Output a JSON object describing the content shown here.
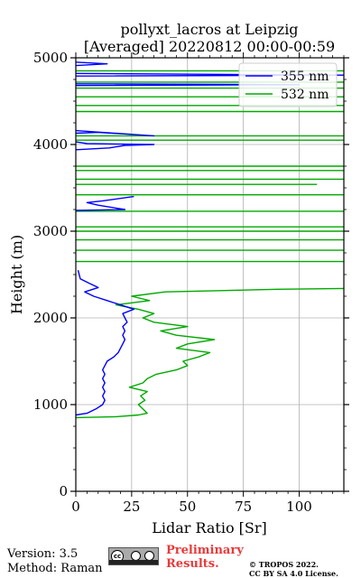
{
  "chart_data": {
    "type": "line",
    "title": "pollyxt_lacros at Leipzig",
    "subtitle": "[Averaged] 20220812 00:00-00:59",
    "xlabel": "Lidar Ratio [Sr]",
    "ylabel": "Height (m)",
    "xlim": [
      0,
      120
    ],
    "ylim": [
      0,
      5000
    ],
    "xticks": [
      0,
      25,
      50,
      75,
      100
    ],
    "yticks": [
      0,
      1000,
      2000,
      3000,
      4000,
      5000
    ],
    "grid": true,
    "legend_position": "top-right",
    "series": [
      {
        "name": "355 nm",
        "color": "#0000ff",
        "points": [
          [
            0,
            880
          ],
          [
            5,
            900
          ],
          [
            9,
            950
          ],
          [
            12,
            1000
          ],
          [
            13,
            1050
          ],
          [
            12,
            1100
          ],
          [
            13,
            1150
          ],
          [
            12,
            1200
          ],
          [
            13,
            1250
          ],
          [
            12,
            1300
          ],
          [
            13,
            1350
          ],
          [
            12,
            1400
          ],
          [
            13,
            1450
          ],
          [
            14,
            1500
          ],
          [
            17,
            1550
          ],
          [
            19,
            1600
          ],
          [
            20,
            1650
          ],
          [
            21,
            1700
          ],
          [
            22,
            1750
          ],
          [
            21,
            1800
          ],
          [
            22,
            1850
          ],
          [
            21,
            1900
          ],
          [
            23,
            1950
          ],
          [
            22,
            2000
          ],
          [
            21,
            2050
          ],
          [
            26,
            2100
          ],
          [
            20,
            2150
          ],
          [
            14,
            2200
          ],
          [
            8,
            2250
          ],
          [
            4,
            2300
          ],
          [
            10,
            2350
          ],
          [
            6,
            2400
          ],
          [
            2,
            2450
          ],
          [
            1,
            2550
          ],
          [
            null,
            null
          ],
          [
            0,
            3240
          ],
          [
            22,
            3250
          ],
          [
            10,
            3300
          ],
          [
            5,
            3330
          ],
          [
            12,
            3350
          ],
          [
            26,
            3400
          ],
          [
            null,
            null
          ],
          [
            0,
            3940
          ],
          [
            15,
            3960
          ],
          [
            22,
            3990
          ],
          [
            35,
            4000
          ],
          [
            5,
            4010
          ],
          [
            0,
            4030
          ],
          [
            null,
            null
          ],
          [
            0,
            4130
          ],
          [
            10,
            4140
          ],
          [
            35,
            4100
          ],
          [
            0,
            4160
          ],
          [
            null,
            null
          ],
          [
            0,
            4680
          ],
          [
            100,
            4690
          ],
          [
            0,
            4700
          ],
          [
            null,
            null
          ],
          [
            0,
            4790
          ],
          [
            120,
            4800
          ],
          [
            0,
            4820
          ],
          [
            null,
            null
          ],
          [
            0,
            4910
          ],
          [
            14,
            4930
          ],
          [
            0,
            4950
          ]
        ]
      },
      {
        "name": "532 nm",
        "color": "#00aa00",
        "points": [
          [
            0,
            850
          ],
          [
            18,
            860
          ],
          [
            28,
            880
          ],
          [
            32,
            900
          ],
          [
            30,
            950
          ],
          [
            28,
            1000
          ],
          [
            31,
            1050
          ],
          [
            29,
            1100
          ],
          [
            32,
            1150
          ],
          [
            24,
            1200
          ],
          [
            30,
            1250
          ],
          [
            32,
            1300
          ],
          [
            36,
            1350
          ],
          [
            45,
            1400
          ],
          [
            50,
            1450
          ],
          [
            48,
            1500
          ],
          [
            55,
            1550
          ],
          [
            60,
            1600
          ],
          [
            45,
            1650
          ],
          [
            50,
            1700
          ],
          [
            62,
            1750
          ],
          [
            45,
            1800
          ],
          [
            38,
            1850
          ],
          [
            50,
            1900
          ],
          [
            35,
            1950
          ],
          [
            30,
            2000
          ],
          [
            35,
            2050
          ],
          [
            28,
            2100
          ],
          [
            18,
            2150
          ],
          [
            33,
            2200
          ],
          [
            25,
            2250
          ],
          [
            40,
            2300
          ],
          [
            90,
            2330
          ],
          [
            120,
            2340
          ],
          [
            null,
            null
          ],
          [
            0,
            2650
          ],
          [
            120,
            2650
          ],
          [
            null,
            null
          ],
          [
            0,
            2780
          ],
          [
            120,
            2780
          ],
          [
            null,
            null
          ],
          [
            0,
            2900
          ],
          [
            120,
            2900
          ],
          [
            null,
            null
          ],
          [
            0,
            3000
          ],
          [
            120,
            3000
          ],
          [
            null,
            null
          ],
          [
            0,
            3050
          ],
          [
            120,
            3050
          ],
          [
            null,
            null
          ],
          [
            0,
            3230
          ],
          [
            120,
            3230
          ],
          [
            null,
            null
          ],
          [
            0,
            3420
          ],
          [
            120,
            3420
          ],
          [
            null,
            null
          ],
          [
            0,
            3540
          ],
          [
            108,
            3540
          ],
          [
            null,
            null
          ],
          [
            0,
            3600
          ],
          [
            120,
            3600
          ],
          [
            null,
            null
          ],
          [
            0,
            3700
          ],
          [
            120,
            3700
          ],
          [
            null,
            null
          ],
          [
            0,
            3750
          ],
          [
            120,
            3750
          ],
          [
            null,
            null
          ],
          [
            0,
            4050
          ],
          [
            120,
            4050
          ],
          [
            null,
            null
          ],
          [
            0,
            4100
          ],
          [
            120,
            4100
          ],
          [
            null,
            null
          ],
          [
            0,
            4380
          ],
          [
            120,
            4380
          ],
          [
            null,
            null
          ],
          [
            0,
            4450
          ],
          [
            120,
            4450
          ],
          [
            null,
            null
          ],
          [
            0,
            4550
          ],
          [
            120,
            4550
          ],
          [
            null,
            null
          ],
          [
            0,
            4650
          ],
          [
            120,
            4650
          ],
          [
            null,
            null
          ],
          [
            0,
            4720
          ],
          [
            120,
            4720
          ],
          [
            null,
            null
          ],
          [
            0,
            4850
          ],
          [
            120,
            4850
          ]
        ]
      }
    ]
  },
  "footer": {
    "version": "Version: 3.5",
    "method": "Method: Raman",
    "preliminary_line1": "Preliminary",
    "preliminary_line2": "Results.",
    "copyright_line1": "© TROPOS 2022.",
    "copyright_line2": "CC BY SA 4.0 License."
  },
  "license_badge": {
    "cc": "cc",
    "strip": "BY SA"
  }
}
